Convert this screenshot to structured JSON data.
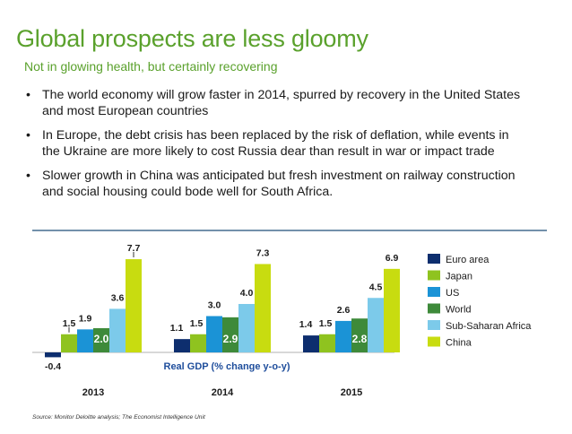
{
  "slide": {
    "title": "Global prospects are less gloomy",
    "subtitle": "Not in glowing health, but certainly recovering",
    "bullets": [
      "The world economy will grow faster in 2014, spurred by recovery in the United States and most European countries",
      "In Europe, the debt crisis has been replaced by the risk of deflation, while events in the Ukraine are more likely to cost Russia dear than result in war or impact trade",
      "Slower growth in China was anticipated but fresh investment on railway construction and social housing could bode well for South Africa."
    ],
    "bullet_symbol": "•",
    "source": "Source: Monitor Deloitte analysis; The Economist Intelligence Unit"
  },
  "chart_data": {
    "type": "bar",
    "title": "Real GDP (% change y-o-y)",
    "xlabel": "",
    "ylabel": "",
    "categories": [
      "2013",
      "2014",
      "2015"
    ],
    "series": [
      {
        "name": "Euro area",
        "color": "#0d2e6e",
        "values": [
          -0.4,
          1.1,
          1.4
        ]
      },
      {
        "name": "Japan",
        "color": "#8fc31f",
        "values": [
          1.5,
          1.5,
          1.5
        ]
      },
      {
        "name": "US",
        "color": "#1b93d6",
        "values": [
          1.9,
          3.0,
          2.6
        ]
      },
      {
        "name": "World",
        "color": "#3e8a3a",
        "values": [
          2.0,
          2.9,
          2.8
        ]
      },
      {
        "name": "Sub-Saharan Africa",
        "color": "#7ccaea",
        "values": [
          3.6,
          4.0,
          4.5
        ]
      },
      {
        "name": "China",
        "color": "#c8dc10",
        "values": [
          7.7,
          7.3,
          6.9
        ]
      }
    ],
    "data_labels": [
      [
        "-0.4",
        "1.1",
        "1.4"
      ],
      [
        "1.5",
        "1.5",
        "1.5"
      ],
      [
        "1.9",
        "3.0",
        "2.6"
      ],
      [
        "2.0",
        "2.9",
        "2.8"
      ],
      [
        "3.6",
        "4.0",
        "4.5"
      ],
      [
        "7.7",
        "7.3",
        "6.9"
      ]
    ],
    "ylim": [
      -0.5,
      8
    ],
    "grid": false,
    "legend": "right"
  }
}
